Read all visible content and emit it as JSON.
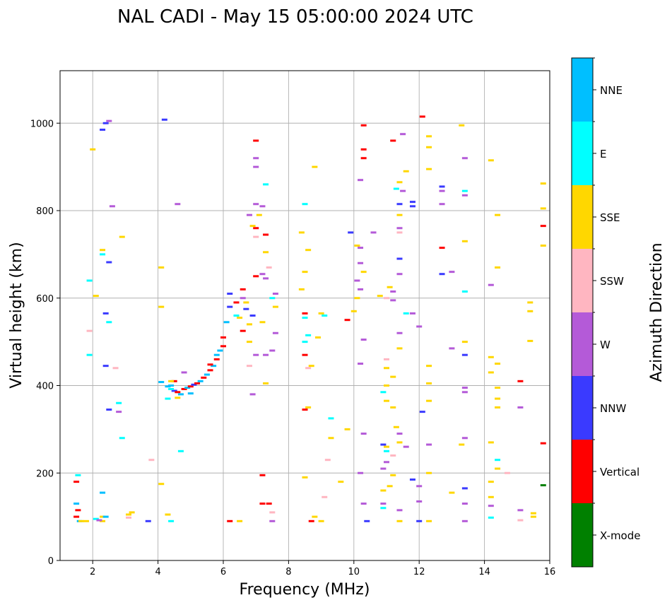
{
  "chart_data": {
    "type": "scatter",
    "title": "NAL CADI - May 15 05:00:00 2024 UTC",
    "xlabel": "Frequency (MHz)",
    "ylabel": "Virtual height (km)",
    "xlim": [
      1.0,
      16.0
    ],
    "ylim": [
      0,
      1120
    ],
    "xticks": [
      2,
      4,
      6,
      8,
      10,
      12,
      14,
      16
    ],
    "yticks": [
      0,
      200,
      400,
      600,
      800,
      1000
    ],
    "grid": true,
    "colorbar": {
      "label": "Azimuth Direction",
      "categories": [
        {
          "name": "X-mode",
          "color": "#008000"
        },
        {
          "name": "Vertical",
          "color": "#ff0000"
        },
        {
          "name": "NNW",
          "color": "#3a3aff"
        },
        {
          "name": "W",
          "color": "#b45ad8"
        },
        {
          "name": "SSW",
          "color": "#ffb6c1"
        },
        {
          "name": "SSE",
          "color": "#ffd700"
        },
        {
          "name": "E",
          "color": "#00ffff"
        },
        {
          "name": "NNE",
          "color": "#00bfff"
        }
      ]
    },
    "points": [
      [
        "NNW",
        4.5,
        388
      ],
      [
        "Vertical",
        4.6,
        385
      ],
      [
        "NNE",
        4.7,
        380
      ],
      [
        "Vertical",
        4.8,
        392
      ],
      [
        "NNE",
        4.9,
        395
      ],
      [
        "Vertical",
        5.0,
        398
      ],
      [
        "NNW",
        5.1,
        402
      ],
      [
        "Vertical",
        5.2,
        405
      ],
      [
        "NNE",
        5.3,
        410
      ],
      [
        "Vertical",
        5.4,
        418
      ],
      [
        "NNE",
        5.5,
        425
      ],
      [
        "Vertical",
        5.6,
        435
      ],
      [
        "NNE",
        5.7,
        445
      ],
      [
        "Vertical",
        5.8,
        460
      ],
      [
        "NNE",
        5.9,
        480
      ],
      [
        "Vertical",
        6.0,
        510
      ],
      [
        "NNE",
        6.1,
        545
      ],
      [
        "NNW",
        6.2,
        580
      ],
      [
        "NNW",
        6.2,
        610
      ],
      [
        "Vertical",
        6.4,
        590
      ],
      [
        "NNE",
        4.3,
        398
      ],
      [
        "E",
        4.4,
        392
      ],
      [
        "SSE",
        4.6,
        372
      ],
      [
        "NNE",
        4.1,
        408
      ],
      [
        "Vertical",
        4.5,
        410
      ],
      [
        "NNE",
        5.0,
        382
      ],
      [
        "Vertical",
        5.6,
        448
      ],
      [
        "NNE",
        5.8,
        470
      ],
      [
        "Vertical",
        6.0,
        490
      ],
      [
        "Vertical",
        6.6,
        525
      ],
      [
        "Vertical",
        1.5,
        100
      ],
      [
        "Vertical",
        1.55,
        115
      ],
      [
        "NNE",
        1.6,
        90
      ],
      [
        "SSE",
        1.65,
        90
      ],
      [
        "NNE",
        1.5,
        130
      ],
      [
        "Vertical",
        1.5,
        180
      ],
      [
        "E",
        1.55,
        195
      ],
      [
        "SSE",
        1.8,
        90
      ],
      [
        "SSE",
        2.3,
        100
      ],
      [
        "SSE",
        2.3,
        90
      ],
      [
        "SSE",
        3.1,
        105
      ],
      [
        "NNW",
        3.7,
        90
      ],
      [
        "SSE",
        4.3,
        105
      ],
      [
        "E",
        4.4,
        90
      ],
      [
        "Vertical",
        6.2,
        90
      ],
      [
        "SSE",
        6.5,
        90
      ],
      [
        "Vertical",
        7.2,
        130
      ],
      [
        "Vertical",
        7.2,
        195
      ],
      [
        "NNW",
        2.4,
        1000
      ],
      [
        "NNW",
        2.3,
        985
      ],
      [
        "NNW",
        4.2,
        1008
      ],
      [
        "Vertical",
        7.0,
        960
      ],
      [
        "W",
        7.0,
        920
      ],
      [
        "W",
        7.0,
        900
      ],
      [
        "E",
        7.3,
        860
      ],
      [
        "W",
        7.0,
        815
      ],
      [
        "Vertical",
        7.0,
        760
      ],
      [
        "Vertical",
        7.0,
        650
      ],
      [
        "NNW",
        6.9,
        560
      ],
      [
        "W",
        7.2,
        655
      ],
      [
        "W",
        7.6,
        520
      ],
      [
        "E",
        8.5,
        815
      ],
      [
        "SSE",
        8.4,
        750
      ],
      [
        "SSE",
        8.6,
        710
      ],
      [
        "SSE",
        8.5,
        660
      ],
      [
        "SSE",
        8.4,
        620
      ],
      [
        "Vertical",
        8.5,
        565
      ],
      [
        "E",
        8.5,
        555
      ],
      [
        "E",
        8.5,
        500
      ],
      [
        "Vertical",
        8.5,
        470
      ],
      [
        "SSE",
        8.7,
        445
      ],
      [
        "Vertical",
        8.5,
        345
      ],
      [
        "SSE",
        8.5,
        190
      ],
      [
        "SSE",
        8.8,
        100
      ],
      [
        "Vertical",
        8.7,
        90
      ],
      [
        "SSE",
        9.0,
        90
      ],
      [
        "SSE",
        9.0,
        565
      ],
      [
        "E",
        9.3,
        325
      ],
      [
        "SSE",
        9.3,
        280
      ],
      [
        "NNW",
        9.9,
        750
      ],
      [
        "Vertical",
        9.8,
        550
      ],
      [
        "W",
        10.2,
        870
      ],
      [
        "W",
        10.1,
        640
      ],
      [
        "SSE",
        10.0,
        570
      ],
      [
        "W",
        10.3,
        505
      ],
      [
        "W",
        10.2,
        450
      ],
      [
        "W",
        10.3,
        290
      ],
      [
        "W",
        10.2,
        200
      ],
      [
        "W",
        10.3,
        130
      ],
      [
        "NNW",
        10.4,
        90
      ],
      [
        "Vertical",
        10.3,
        995
      ],
      [
        "Vertical",
        10.3,
        940
      ],
      [
        "NNW",
        11.4,
        815
      ],
      [
        "NNW",
        11.4,
        690
      ],
      [
        "SSW",
        11.0,
        460
      ],
      [
        "SSE",
        11.0,
        440
      ],
      [
        "SSE",
        11.0,
        400
      ],
      [
        "SSE",
        11.0,
        365
      ],
      [
        "SSE",
        11.2,
        350
      ],
      [
        "SSE",
        11.0,
        260
      ],
      [
        "E",
        11.0,
        250
      ],
      [
        "SSE",
        11.2,
        195
      ],
      [
        "W",
        11.4,
        115
      ],
      [
        "SSE",
        11.4,
        90
      ],
      [
        "NNW",
        11.8,
        820
      ],
      [
        "NNW",
        11.8,
        810
      ],
      [
        "W",
        11.8,
        565
      ],
      [
        "W",
        12.0,
        535
      ],
      [
        "NNW",
        12.1,
        340
      ],
      [
        "NNW",
        11.8,
        185
      ],
      [
        "W",
        12.0,
        170
      ],
      [
        "W",
        12.0,
        135
      ],
      [
        "NNW",
        12.0,
        90
      ],
      [
        "Vertical",
        12.1,
        1015
      ],
      [
        "SSE",
        12.3,
        970
      ],
      [
        "SSE",
        12.3,
        945
      ],
      [
        "SSE",
        12.3,
        895
      ],
      [
        "NNW",
        12.7,
        855
      ],
      [
        "W",
        12.7,
        845
      ],
      [
        "W",
        12.7,
        815
      ],
      [
        "Vertical",
        12.7,
        715
      ],
      [
        "NNW",
        12.7,
        655
      ],
      [
        "W",
        13.0,
        660
      ],
      [
        "W",
        13.0,
        485
      ],
      [
        "SSE",
        12.3,
        445
      ],
      [
        "SSE",
        12.3,
        405
      ],
      [
        "SSE",
        12.3,
        365
      ],
      [
        "W",
        12.3,
        265
      ],
      [
        "SSE",
        12.3,
        200
      ],
      [
        "SSE",
        12.3,
        90
      ],
      [
        "SSE",
        13.3,
        995
      ],
      [
        "W",
        13.4,
        920
      ],
      [
        "E",
        13.4,
        845
      ],
      [
        "W",
        13.4,
        835
      ],
      [
        "SSE",
        13.4,
        730
      ],
      [
        "E",
        13.4,
        615
      ],
      [
        "SSE",
        13.4,
        500
      ],
      [
        "NNW",
        13.4,
        470
      ],
      [
        "W",
        13.4,
        395
      ],
      [
        "W",
        13.4,
        385
      ],
      [
        "W",
        13.4,
        280
      ],
      [
        "SSE",
        13.3,
        265
      ],
      [
        "SSE",
        13.0,
        155
      ],
      [
        "NNW",
        13.4,
        165
      ],
      [
        "W",
        13.4,
        130
      ],
      [
        "W",
        13.4,
        90
      ],
      [
        "SSE",
        14.2,
        915
      ],
      [
        "SSE",
        14.4,
        790
      ],
      [
        "SSE",
        14.4,
        670
      ],
      [
        "W",
        14.2,
        630
      ],
      [
        "SSE",
        14.2,
        465
      ],
      [
        "SSE",
        14.2,
        430
      ],
      [
        "SSE",
        14.4,
        450
      ],
      [
        "SSE",
        14.4,
        395
      ],
      [
        "SSE",
        14.4,
        370
      ],
      [
        "SSE",
        14.4,
        350
      ],
      [
        "SSE",
        14.2,
        270
      ],
      [
        "E",
        14.4,
        230
      ],
      [
        "SSE",
        14.4,
        210
      ],
      [
        "SSW",
        14.7,
        200
      ],
      [
        "SSE",
        14.2,
        180
      ],
      [
        "SSE",
        14.2,
        145
      ],
      [
        "W",
        14.2,
        125
      ],
      [
        "E",
        14.2,
        98
      ],
      [
        "Vertical",
        15.1,
        410
      ],
      [
        "W",
        15.1,
        350
      ],
      [
        "W",
        15.1,
        115
      ],
      [
        "SSW",
        15.1,
        92
      ],
      [
        "SSE",
        15.4,
        590
      ],
      [
        "SSE",
        15.4,
        570
      ],
      [
        "SSE",
        15.4,
        502
      ],
      [
        "SSE",
        15.5,
        108
      ],
      [
        "SSE",
        15.5,
        100
      ],
      [
        "SSE",
        15.8,
        862
      ],
      [
        "SSE",
        15.8,
        805
      ],
      [
        "Vertical",
        15.8,
        765
      ],
      [
        "SSE",
        15.8,
        720
      ],
      [
        "Vertical",
        15.8,
        268
      ],
      [
        "X-mode",
        15.8,
        172
      ],
      [
        "SSE",
        10.1,
        720
      ],
      [
        "W",
        10.2,
        715
      ],
      [
        "W",
        10.2,
        680
      ],
      [
        "SSE",
        10.3,
        660
      ],
      [
        "W",
        10.2,
        620
      ],
      [
        "SSE",
        10.1,
        600
      ],
      [
        "W",
        10.6,
        750
      ],
      [
        "Vertical",
        10.3,
        920
      ],
      [
        "Vertical",
        11.2,
        960
      ],
      [
        "W",
        11.5,
        975
      ],
      [
        "SSE",
        11.6,
        890
      ],
      [
        "SSE",
        11.4,
        865
      ],
      [
        "W",
        11.5,
        845
      ],
      [
        "E",
        11.3,
        850
      ],
      [
        "SSE",
        11.4,
        790
      ],
      [
        "W",
        11.4,
        760
      ],
      [
        "SSW",
        11.4,
        750
      ],
      [
        "W",
        11.4,
        655
      ],
      [
        "SSE",
        11.1,
        625
      ],
      [
        "W",
        11.2,
        615
      ],
      [
        "SSW",
        11.0,
        600
      ],
      [
        "SSE",
        10.8,
        605
      ],
      [
        "W",
        11.2,
        595
      ],
      [
        "W",
        11.4,
        520
      ],
      [
        "E",
        11.6,
        565
      ],
      [
        "SSE",
        11.4,
        485
      ],
      [
        "SSE",
        11.2,
        420
      ],
      [
        "NNW",
        10.9,
        265
      ],
      [
        "E",
        10.9,
        385
      ],
      [
        "W",
        11.0,
        225
      ],
      [
        "W",
        10.9,
        210
      ],
      [
        "SSE",
        10.9,
        160
      ],
      [
        "W",
        10.9,
        130
      ],
      [
        "E",
        10.9,
        120
      ],
      [
        "SSE",
        11.1,
        170
      ],
      [
        "SSE",
        11.3,
        305
      ],
      [
        "W",
        11.4,
        290
      ],
      [
        "SSE",
        11.4,
        270
      ],
      [
        "W",
        11.6,
        260
      ],
      [
        "SSW",
        11.2,
        240
      ],
      [
        "SSE",
        9.8,
        300
      ],
      [
        "SSW",
        9.2,
        230
      ],
      [
        "SSE",
        9.6,
        180
      ],
      [
        "SSW",
        9.1,
        145
      ],
      [
        "E",
        9.1,
        560
      ],
      [
        "SSE",
        8.8,
        900
      ],
      [
        "SSW",
        8.6,
        440
      ],
      [
        "E",
        8.6,
        515
      ],
      [
        "SSE",
        8.6,
        350
      ],
      [
        "SSE",
        8.9,
        510
      ],
      [
        "SSE",
        2.0,
        940
      ],
      [
        "SSE",
        2.3,
        710
      ],
      [
        "E",
        2.3,
        700
      ],
      [
        "NNW",
        2.5,
        682
      ],
      [
        "SSE",
        2.1,
        605
      ],
      [
        "NNW",
        2.4,
        565
      ],
      [
        "E",
        2.5,
        545
      ],
      [
        "NNW",
        2.4,
        445
      ],
      [
        "SSW",
        2.7,
        440
      ],
      [
        "NNW",
        2.5,
        345
      ],
      [
        "E",
        2.8,
        360
      ],
      [
        "W",
        2.8,
        340
      ],
      [
        "E",
        1.9,
        640
      ],
      [
        "E",
        1.9,
        470
      ],
      [
        "SSW",
        1.9,
        525
      ],
      [
        "SSE",
        2.9,
        740
      ],
      [
        "W",
        2.5,
        1005
      ],
      [
        "W",
        2.6,
        810
      ],
      [
        "E",
        2.9,
        280
      ],
      [
        "W",
        4.6,
        815
      ],
      [
        "SSE",
        4.1,
        670
      ],
      [
        "SSE",
        4.1,
        580
      ],
      [
        "SSE",
        4.4,
        410
      ],
      [
        "E",
        4.3,
        370
      ],
      [
        "NNE",
        4.4,
        400
      ],
      [
        "W",
        4.8,
        430
      ],
      [
        "SSE",
        4.1,
        175
      ],
      [
        "SSW",
        3.8,
        230
      ],
      [
        "E",
        4.7,
        250
      ],
      [
        "SSE",
        3.2,
        110
      ],
      [
        "SSW",
        3.1,
        98
      ],
      [
        "NNE",
        2.3,
        155
      ],
      [
        "NNE",
        2.4,
        100
      ],
      [
        "E",
        2.1,
        95
      ],
      [
        "W",
        2.2,
        92
      ],
      [
        "SSW",
        7.5,
        110
      ],
      [
        "W",
        7.5,
        90
      ],
      [
        "Vertical",
        7.4,
        130
      ],
      [
        "W",
        6.9,
        380
      ],
      [
        "SSE",
        7.3,
        405
      ],
      [
        "W",
        7.3,
        470
      ],
      [
        "W",
        7.5,
        480
      ],
      [
        "SSE",
        7.2,
        545
      ],
      [
        "SSE",
        7.3,
        705
      ],
      [
        "W",
        7.3,
        645
      ],
      [
        "SSE",
        6.7,
        590
      ],
      [
        "W",
        6.6,
        600
      ],
      [
        "SSW",
        6.8,
        445
      ],
      [
        "SSE",
        6.8,
        500
      ],
      [
        "W",
        7.0,
        470
      ],
      [
        "W",
        6.8,
        790
      ],
      [
        "SSE",
        6.9,
        765
      ],
      [
        "SSW",
        7.0,
        740
      ],
      [
        "Vertical",
        7.3,
        745
      ],
      [
        "W",
        7.6,
        610
      ],
      [
        "E",
        7.5,
        600
      ],
      [
        "SSE",
        7.6,
        580
      ],
      [
        "Vertical",
        6.6,
        620
      ],
      [
        "NNW",
        6.7,
        575
      ],
      [
        "SSE",
        6.5,
        555
      ],
      [
        "E",
        6.4,
        560
      ],
      [
        "SSE",
        6.8,
        540
      ],
      [
        "SSW",
        7.4,
        670
      ],
      [
        "W",
        7.2,
        810
      ],
      [
        "SSE",
        7.1,
        790
      ]
    ]
  }
}
